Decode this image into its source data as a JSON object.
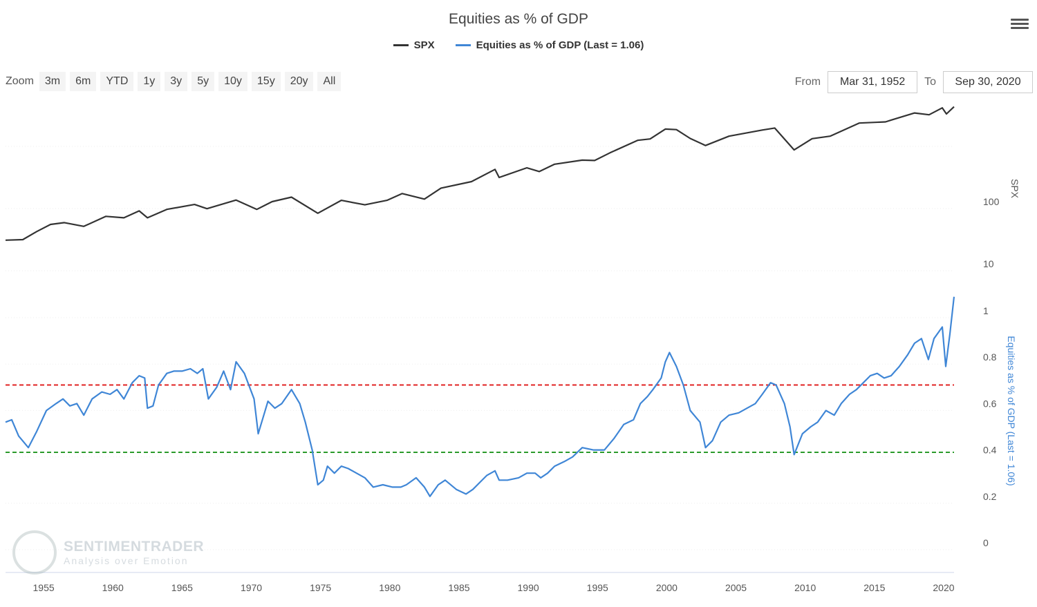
{
  "header": {
    "title": "Equities as % of GDP",
    "menu_icon": "hamburger-menu-icon"
  },
  "legend": [
    {
      "label": "SPX",
      "color": "#333333"
    },
    {
      "label": "Equities as % of GDP (Last = 1.06)",
      "color": "#3f86d6"
    }
  ],
  "zoom": {
    "label": "Zoom",
    "buttons": [
      "3m",
      "6m",
      "YTD",
      "1y",
      "3y",
      "5y",
      "10y",
      "15y",
      "20y",
      "All"
    ]
  },
  "range": {
    "from_label": "From",
    "from_value": "Mar 31, 1952",
    "to_label": "To",
    "to_value": "Sep 30, 2020"
  },
  "watermark": {
    "name": "SENTIMENTRADER",
    "tagline": "Analysis over Emotion"
  },
  "chart_data": {
    "type": "line",
    "title": "Equities as % of GDP",
    "x_ticks": [
      "1955",
      "1960",
      "1965",
      "1970",
      "1975",
      "1980",
      "1985",
      "1990",
      "1995",
      "2000",
      "2005",
      "2010",
      "2015",
      "2020"
    ],
    "x_range": [
      1952.25,
      2020.75
    ],
    "top_panel": {
      "ylabel": "SPX",
      "scale": "log",
      "y_ticks": [
        "10",
        "100"
      ],
      "series": {
        "name": "SPX",
        "color": "#333333",
        "points": [
          [
            1952.25,
            24
          ],
          [
            1953.5,
            24.5
          ],
          [
            1954.5,
            33
          ],
          [
            1955.5,
            43
          ],
          [
            1956.5,
            46
          ],
          [
            1957.9,
            40
          ],
          [
            1959.5,
            58
          ],
          [
            1960.8,
            55
          ],
          [
            1961.9,
            71
          ],
          [
            1962.5,
            55
          ],
          [
            1963.9,
            75
          ],
          [
            1965.9,
            90
          ],
          [
            1966.8,
            77
          ],
          [
            1968.9,
            106
          ],
          [
            1970.4,
            75
          ],
          [
            1971.5,
            100
          ],
          [
            1972.9,
            118
          ],
          [
            1974.8,
            65
          ],
          [
            1976.5,
            105
          ],
          [
            1978.2,
            89
          ],
          [
            1979.8,
            105
          ],
          [
            1980.9,
            135
          ],
          [
            1982.5,
            110
          ],
          [
            1983.7,
            165
          ],
          [
            1985.9,
            210
          ],
          [
            1987.6,
            330
          ],
          [
            1987.9,
            245
          ],
          [
            1989.9,
            350
          ],
          [
            1990.8,
            305
          ],
          [
            1991.9,
            400
          ],
          [
            1993.9,
            465
          ],
          [
            1994.8,
            460
          ],
          [
            1995.9,
            610
          ],
          [
            1997.9,
            970
          ],
          [
            1998.8,
            1020
          ],
          [
            1999.9,
            1470
          ],
          [
            2000.7,
            1440
          ],
          [
            2001.7,
            1040
          ],
          [
            2002.8,
            800
          ],
          [
            2004.5,
            1130
          ],
          [
            2006.9,
            1420
          ],
          [
            2007.8,
            1530
          ],
          [
            2009.2,
            680
          ],
          [
            2010.5,
            1030
          ],
          [
            2011.8,
            1130
          ],
          [
            2013.9,
            1840
          ],
          [
            2015.8,
            1920
          ],
          [
            2016.2,
            2050
          ],
          [
            2017.9,
            2670
          ],
          [
            2018.95,
            2500
          ],
          [
            2019.9,
            3230
          ],
          [
            2020.2,
            2580
          ],
          [
            2020.75,
            3360
          ]
        ]
      }
    },
    "bottom_panel": {
      "ylabel": "Equities as % of GDP (Last = 1.06)",
      "scale": "linear",
      "y_ticks": [
        "0",
        "0.2",
        "0.4",
        "0.6",
        "0.8",
        "1"
      ],
      "ylim": [
        0,
        1
      ],
      "reference_lines": [
        {
          "value": 0.68,
          "color": "#e02020"
        },
        {
          "value": 0.39,
          "color": "#2a9a2a"
        }
      ],
      "series": {
        "name": "Equities as % of GDP (Last = 1.06)",
        "color": "#3f86d6",
        "last": 1.06,
        "points": [
          [
            1952.25,
            0.52
          ],
          [
            1952.7,
            0.53
          ],
          [
            1953.2,
            0.46
          ],
          [
            1953.9,
            0.41
          ],
          [
            1954.5,
            0.48
          ],
          [
            1955.2,
            0.57
          ],
          [
            1955.9,
            0.6
          ],
          [
            1956.4,
            0.62
          ],
          [
            1956.9,
            0.59
          ],
          [
            1957.4,
            0.6
          ],
          [
            1957.9,
            0.55
          ],
          [
            1958.5,
            0.62
          ],
          [
            1959.2,
            0.65
          ],
          [
            1959.8,
            0.64
          ],
          [
            1960.3,
            0.66
          ],
          [
            1960.8,
            0.62
          ],
          [
            1961.4,
            0.69
          ],
          [
            1961.9,
            0.72
          ],
          [
            1962.3,
            0.71
          ],
          [
            1962.5,
            0.58
          ],
          [
            1962.9,
            0.59
          ],
          [
            1963.3,
            0.68
          ],
          [
            1963.9,
            0.73
          ],
          [
            1964.4,
            0.74
          ],
          [
            1965.0,
            0.74
          ],
          [
            1965.6,
            0.75
          ],
          [
            1966.1,
            0.73
          ],
          [
            1966.5,
            0.75
          ],
          [
            1966.9,
            0.62
          ],
          [
            1967.5,
            0.67
          ],
          [
            1968.0,
            0.74
          ],
          [
            1968.5,
            0.66
          ],
          [
            1968.9,
            0.78
          ],
          [
            1969.5,
            0.73
          ],
          [
            1970.2,
            0.62
          ],
          [
            1970.5,
            0.47
          ],
          [
            1971.2,
            0.61
          ],
          [
            1971.7,
            0.58
          ],
          [
            1972.2,
            0.6
          ],
          [
            1972.9,
            0.66
          ],
          [
            1973.5,
            0.6
          ],
          [
            1973.9,
            0.52
          ],
          [
            1974.4,
            0.4
          ],
          [
            1974.8,
            0.25
          ],
          [
            1975.2,
            0.27
          ],
          [
            1975.5,
            0.33
          ],
          [
            1976.0,
            0.3
          ],
          [
            1976.5,
            0.33
          ],
          [
            1977.0,
            0.32
          ],
          [
            1977.6,
            0.3
          ],
          [
            1978.2,
            0.28
          ],
          [
            1978.8,
            0.24
          ],
          [
            1979.5,
            0.25
          ],
          [
            1980.2,
            0.24
          ],
          [
            1980.8,
            0.24
          ],
          [
            1981.2,
            0.25
          ],
          [
            1981.9,
            0.28
          ],
          [
            1982.5,
            0.24
          ],
          [
            1982.9,
            0.2
          ],
          [
            1983.5,
            0.25
          ],
          [
            1984.0,
            0.27
          ],
          [
            1984.8,
            0.23
          ],
          [
            1985.5,
            0.21
          ],
          [
            1986.0,
            0.23
          ],
          [
            1986.5,
            0.26
          ],
          [
            1987.0,
            0.29
          ],
          [
            1987.6,
            0.31
          ],
          [
            1987.9,
            0.27
          ],
          [
            1988.5,
            0.27
          ],
          [
            1989.3,
            0.28
          ],
          [
            1989.9,
            0.3
          ],
          [
            1990.5,
            0.3
          ],
          [
            1990.9,
            0.28
          ],
          [
            1991.4,
            0.3
          ],
          [
            1991.9,
            0.33
          ],
          [
            1992.6,
            0.35
          ],
          [
            1993.2,
            0.37
          ],
          [
            1993.9,
            0.41
          ],
          [
            1994.7,
            0.4
          ],
          [
            1995.5,
            0.4
          ],
          [
            1996.2,
            0.45
          ],
          [
            1996.9,
            0.51
          ],
          [
            1997.6,
            0.53
          ],
          [
            1998.1,
            0.6
          ],
          [
            1998.6,
            0.63
          ],
          [
            1999.0,
            0.66
          ],
          [
            1999.6,
            0.71
          ],
          [
            1999.9,
            0.78
          ],
          [
            2000.2,
            0.82
          ],
          [
            2000.7,
            0.76
          ],
          [
            2001.2,
            0.68
          ],
          [
            2001.7,
            0.57
          ],
          [
            2002.4,
            0.52
          ],
          [
            2002.8,
            0.41
          ],
          [
            2003.3,
            0.44
          ],
          [
            2003.9,
            0.52
          ],
          [
            2004.5,
            0.55
          ],
          [
            2005.2,
            0.56
          ],
          [
            2005.8,
            0.58
          ],
          [
            2006.4,
            0.6
          ],
          [
            2006.9,
            0.64
          ],
          [
            2007.5,
            0.69
          ],
          [
            2007.9,
            0.68
          ],
          [
            2008.5,
            0.6
          ],
          [
            2008.9,
            0.5
          ],
          [
            2009.2,
            0.38
          ],
          [
            2009.8,
            0.47
          ],
          [
            2010.4,
            0.5
          ],
          [
            2010.9,
            0.52
          ],
          [
            2011.5,
            0.57
          ],
          [
            2012.1,
            0.55
          ],
          [
            2012.6,
            0.6
          ],
          [
            2013.2,
            0.64
          ],
          [
            2013.7,
            0.66
          ],
          [
            2014.2,
            0.69
          ],
          [
            2014.7,
            0.72
          ],
          [
            2015.2,
            0.73
          ],
          [
            2015.7,
            0.71
          ],
          [
            2016.2,
            0.72
          ],
          [
            2016.8,
            0.76
          ],
          [
            2017.4,
            0.81
          ],
          [
            2017.9,
            0.86
          ],
          [
            2018.4,
            0.88
          ],
          [
            2018.9,
            0.79
          ],
          [
            2019.3,
            0.88
          ],
          [
            2019.9,
            0.93
          ],
          [
            2020.15,
            0.76
          ],
          [
            2020.45,
            0.9
          ],
          [
            2020.75,
            1.06
          ]
        ]
      }
    }
  }
}
